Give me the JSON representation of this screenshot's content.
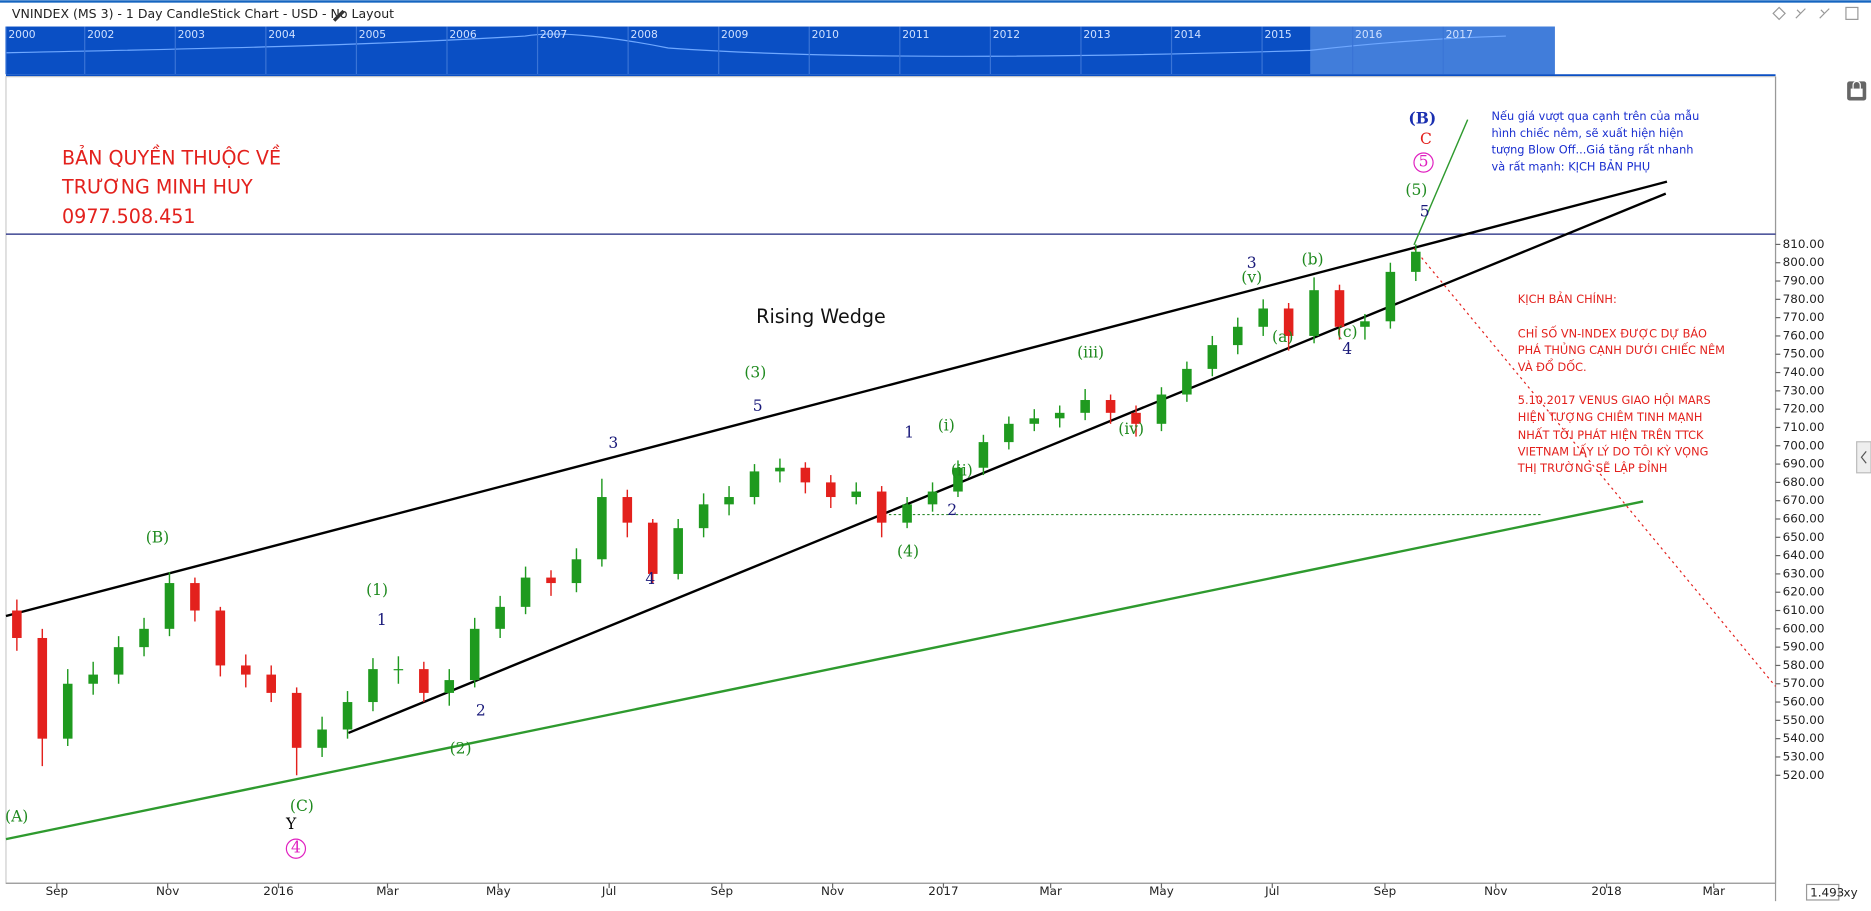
{
  "header": {
    "title": "VNINDEX (MS 3) - 1 Day CandleStick Chart - USD - No Layout"
  },
  "navigator": {
    "years": [
      "2000",
      "2002",
      "2003",
      "2004",
      "2005",
      "2006",
      "2007",
      "2008",
      "2009",
      "2010",
      "2011",
      "2012",
      "2013",
      "2014",
      "2015",
      "2016",
      "2017"
    ]
  },
  "chart_data": {
    "type": "candlestick",
    "x": [
      "2015-08-10",
      "2015-08-24",
      "2015-09-07",
      "2015-09-21",
      "2015-10-05",
      "2015-10-19",
      "2015-11-02",
      "2015-11-16",
      "2015-11-30",
      "2015-12-14",
      "2015-12-28",
      "2016-01-11",
      "2016-01-25",
      "2016-02-08",
      "2016-02-22",
      "2016-03-07",
      "2016-03-21",
      "2016-04-04",
      "2016-04-18",
      "2016-05-02",
      "2016-05-16",
      "2016-05-30",
      "2016-06-13",
      "2016-06-27",
      "2016-07-11",
      "2016-07-25",
      "2016-08-08",
      "2016-08-22",
      "2016-09-05",
      "2016-09-19",
      "2016-10-03",
      "2016-10-17",
      "2016-10-31",
      "2016-11-14",
      "2016-11-28",
      "2016-12-12",
      "2016-12-26",
      "2017-01-09",
      "2017-01-23",
      "2017-02-06",
      "2017-02-20",
      "2017-03-06",
      "2017-03-20",
      "2017-04-03",
      "2017-04-17",
      "2017-05-01",
      "2017-05-15",
      "2017-05-29",
      "2017-06-12",
      "2017-06-26",
      "2017-07-10",
      "2017-07-24",
      "2017-08-07",
      "2017-08-21",
      "2017-09-04",
      "2017-09-18"
    ],
    "open": [
      610,
      595,
      540,
      570,
      575,
      590,
      600,
      625,
      610,
      580,
      575,
      565,
      535,
      545,
      560,
      578,
      578,
      565,
      572,
      600,
      612,
      628,
      625,
      638,
      672,
      658,
      630,
      655,
      668,
      672,
      686,
      688,
      680,
      672,
      675,
      658,
      668,
      675,
      688,
      702,
      712,
      715,
      718,
      725,
      718,
      712,
      728,
      742,
      755,
      765,
      775,
      760,
      785,
      765,
      768,
      795
    ],
    "high": [
      616,
      600,
      578,
      582,
      596,
      606,
      631,
      628,
      612,
      586,
      580,
      568,
      552,
      566,
      584,
      585,
      582,
      578,
      606,
      618,
      634,
      632,
      644,
      682,
      676,
      660,
      660,
      674,
      678,
      690,
      693,
      691,
      684,
      680,
      678,
      672,
      680,
      692,
      706,
      716,
      720,
      722,
      731,
      728,
      722,
      732,
      746,
      760,
      770,
      780,
      778,
      792,
      788,
      772,
      800,
      810
    ],
    "low": [
      588,
      525,
      536,
      564,
      570,
      585,
      596,
      604,
      574,
      568,
      560,
      520,
      530,
      540,
      555,
      570,
      560,
      558,
      568,
      595,
      608,
      618,
      620,
      634,
      650,
      625,
      627,
      650,
      662,
      668,
      680,
      674,
      666,
      668,
      650,
      655,
      664,
      672,
      684,
      698,
      708,
      710,
      714,
      712,
      705,
      708,
      724,
      738,
      750,
      760,
      752,
      756,
      758,
      758,
      764,
      790
    ],
    "close": [
      595,
      540,
      570,
      575,
      590,
      600,
      625,
      610,
      580,
      575,
      565,
      535,
      545,
      560,
      578,
      578,
      565,
      572,
      600,
      612,
      628,
      625,
      638,
      672,
      658,
      630,
      655,
      668,
      672,
      686,
      688,
      680,
      672,
      675,
      658,
      668,
      675,
      688,
      702,
      712,
      715,
      718,
      725,
      718,
      712,
      728,
      742,
      755,
      765,
      775,
      760,
      785,
      765,
      768,
      795,
      806
    ],
    "up_color": "#1f9a1f",
    "down_color": "#e3211d",
    "xlim": [
      "2015-08-04",
      "2018-04-04"
    ],
    "xticks": [
      {
        "value": "2015-09-01",
        "label": "Sep"
      },
      {
        "value": "2015-11-01",
        "label": "Nov"
      },
      {
        "value": "2016-01-01",
        "label": "2016"
      },
      {
        "value": "2016-03-01",
        "label": "Mar"
      },
      {
        "value": "2016-05-01",
        "label": "May"
      },
      {
        "value": "2016-07-01",
        "label": "Jul"
      },
      {
        "value": "2016-09-01",
        "label": "Sep"
      },
      {
        "value": "2016-11-01",
        "label": "Nov"
      },
      {
        "value": "2017-01-01",
        "label": "2017"
      },
      {
        "value": "2017-03-01",
        "label": "Mar"
      },
      {
        "value": "2017-05-01",
        "label": "May"
      },
      {
        "value": "2017-07-01",
        "label": "Jul"
      },
      {
        "value": "2017-09-01",
        "label": "Sep"
      },
      {
        "value": "2017-11-01",
        "label": "Nov"
      },
      {
        "value": "2018-01-01",
        "label": "2018"
      },
      {
        "value": "2018-03-01",
        "label": "Mar"
      }
    ],
    "ylim": [
      461,
      901
    ],
    "yticks": [
      {
        "value": 520,
        "label": "520.00"
      },
      {
        "value": 530,
        "label": "530.00"
      },
      {
        "value": 540,
        "label": "540.00"
      },
      {
        "value": 550,
        "label": "550.00"
      },
      {
        "value": 560,
        "label": "560.00"
      },
      {
        "value": 570,
        "label": "570.00"
      },
      {
        "value": 580,
        "label": "580.00"
      },
      {
        "value": 590,
        "label": "590.00"
      },
      {
        "value": 600,
        "label": "600.00"
      },
      {
        "value": 610,
        "label": "610.00"
      },
      {
        "value": 620,
        "label": "620.00"
      },
      {
        "value": 630,
        "label": "630.00"
      },
      {
        "value": 640,
        "label": "640.00"
      },
      {
        "value": 650,
        "label": "650.00"
      },
      {
        "value": 660,
        "label": "660.00"
      },
      {
        "value": 670,
        "label": "670.00"
      },
      {
        "value": 680,
        "label": "680.00"
      },
      {
        "value": 690,
        "label": "690.00"
      },
      {
        "value": 700,
        "label": "700.00"
      },
      {
        "value": 710,
        "label": "710.00"
      },
      {
        "value": 720,
        "label": "720.00"
      },
      {
        "value": 730,
        "label": "730.00"
      },
      {
        "value": 740,
        "label": "740.00"
      },
      {
        "value": 750,
        "label": "750.00"
      },
      {
        "value": 760,
        "label": "760.00"
      },
      {
        "value": 770,
        "label": "770.00"
      },
      {
        "value": 780,
        "label": "780.00"
      },
      {
        "value": 790,
        "label": "790.00"
      },
      {
        "value": 800,
        "label": "800.00"
      },
      {
        "value": 810,
        "label": "810.00"
      }
    ],
    "annotations": [
      "(A)",
      "(B)",
      "(C)",
      "Y",
      "4",
      "(1)",
      "1",
      "2",
      "(2)",
      "3",
      "4",
      "(3)",
      "5",
      "1",
      "(4)",
      "2",
      "(i)",
      "(ii)",
      "(iii)",
      "(iv)",
      "3",
      "(v)",
      "(b)",
      "(a)",
      "(c)",
      "4",
      "(5)",
      "5",
      "(B)",
      "C",
      "5"
    ],
    "pattern_label": "Rising Wedge",
    "watermark": [
      "BẢN QUYỀN THUỘC VỀ",
      "TRƯƠNG MINH HUY",
      "0977.508.451"
    ],
    "note_alt": [
      "Nếu giá vượt qua cạnh trên của mẫu",
      "hình chiếc nêm, sẽ xuất hiện hiện",
      "tượng Blow Off...Giá tăng rất nhanh",
      "và rất mạnh: KỊCH BẢN PHỤ"
    ],
    "note_main": [
      "KỊCH BẢN CHÍNH:",
      "CHỈ SỐ VN-INDEX ĐƯỢC DỰ BÁO",
      "PHÁ THỦNG CẠNH DƯỚI CHIẾC NÊM",
      "VÀ ĐỔ DỐC.",
      "5.10.2017 VENUS GIAO HỘI MARS",
      "HIỆN TƯỢNG CHIÊM TINH MẠNH",
      "NHẤT TỚI PHÁT HIỆN TRÊN TTCK",
      "VIETNAM LẤY LÝ DO TÔI KỲ VỌNG",
      "THỊ TRƯỜNG SẼ LẬP ĐỈNH"
    ],
    "scale_value": "1.493",
    "scale_mode": "xy"
  }
}
